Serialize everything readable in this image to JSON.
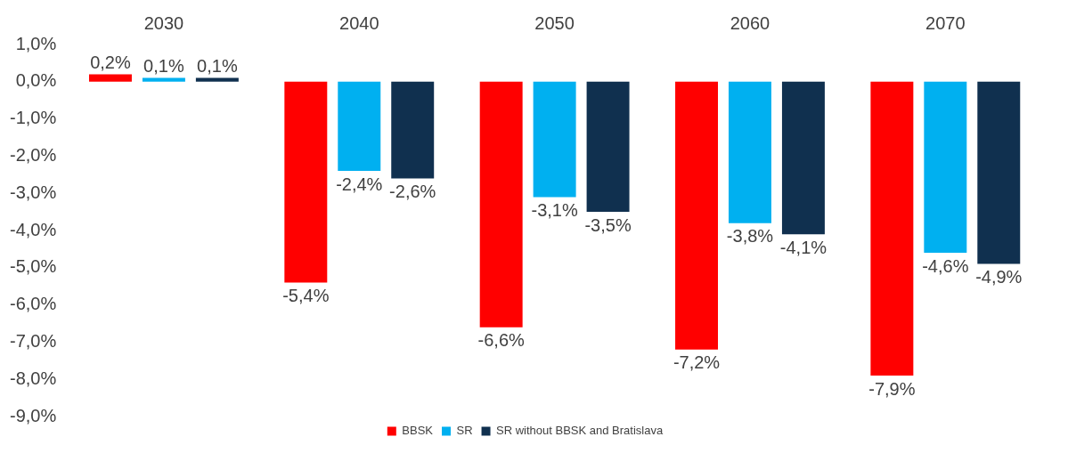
{
  "chart_data": {
    "type": "bar",
    "categories": [
      "2030",
      "2040",
      "2050",
      "2060",
      "2070"
    ],
    "ylim": [
      -9,
      1
    ],
    "yticks": [
      {
        "value": 1,
        "label": "1,0%"
      },
      {
        "value": 0,
        "label": "0,0%"
      },
      {
        "value": -1,
        "label": "-1,0%"
      },
      {
        "value": -2,
        "label": "-2,0%"
      },
      {
        "value": -3,
        "label": "-3,0%"
      },
      {
        "value": -4,
        "label": "-4,0%"
      },
      {
        "value": -5,
        "label": "-5,0%"
      },
      {
        "value": -6,
        "label": "-6,0%"
      },
      {
        "value": -7,
        "label": "-7,0%"
      },
      {
        "value": -8,
        "label": "-8,0%"
      },
      {
        "value": -9,
        "label": "-9,0%"
      }
    ],
    "series": [
      {
        "name": "BBSK",
        "color": "#ff0000",
        "values": [
          0.2,
          -5.4,
          -6.6,
          -7.2,
          -7.9
        ],
        "value_labels": [
          "0,2%",
          "-5,4%",
          "-6,6%",
          "-7,2%",
          "-7,9%"
        ]
      },
      {
        "name": "SR",
        "color": "#00b0f0",
        "values": [
          0.1,
          -2.4,
          -3.1,
          -3.8,
          -4.6
        ],
        "value_labels": [
          "0,1%",
          "-2,4%",
          "-3,1%",
          "-3,8%",
          "-4,6%"
        ]
      },
      {
        "name": "SR without BBSK and Bratislava",
        "color": "#10304f",
        "values": [
          0.1,
          -2.6,
          -3.5,
          -4.1,
          -4.9
        ],
        "value_labels": [
          "0,1%",
          "-2,6%",
          "-3,5%",
          "-4,1%",
          "-4,9%"
        ]
      }
    ],
    "grid": false,
    "legend": "bottom"
  }
}
